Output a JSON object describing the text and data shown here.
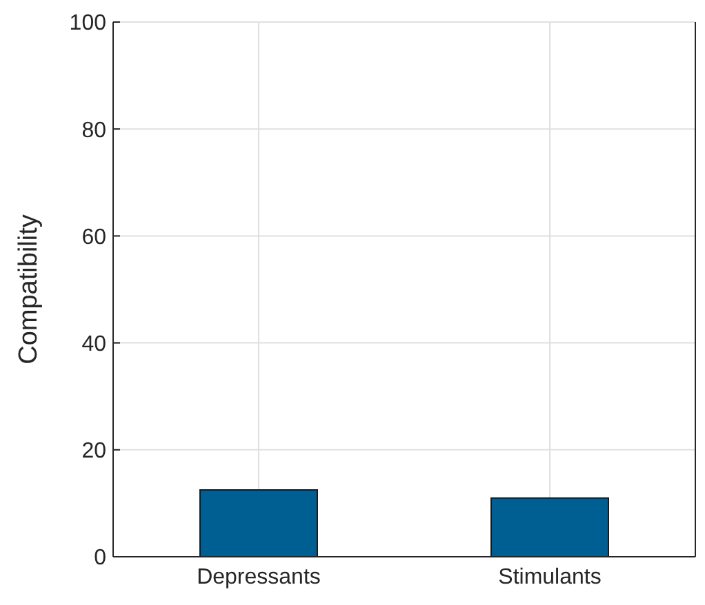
{
  "chart_data": {
    "type": "bar",
    "ylabel": "Compatibility",
    "categories": [
      "Depressants",
      "Stimulants"
    ],
    "values": [
      12.5,
      11
    ],
    "color": "#005f92",
    "ylim": [
      0,
      100
    ],
    "yticks": [
      0,
      20,
      40,
      60,
      80,
      100
    ],
    "grid": true
  }
}
